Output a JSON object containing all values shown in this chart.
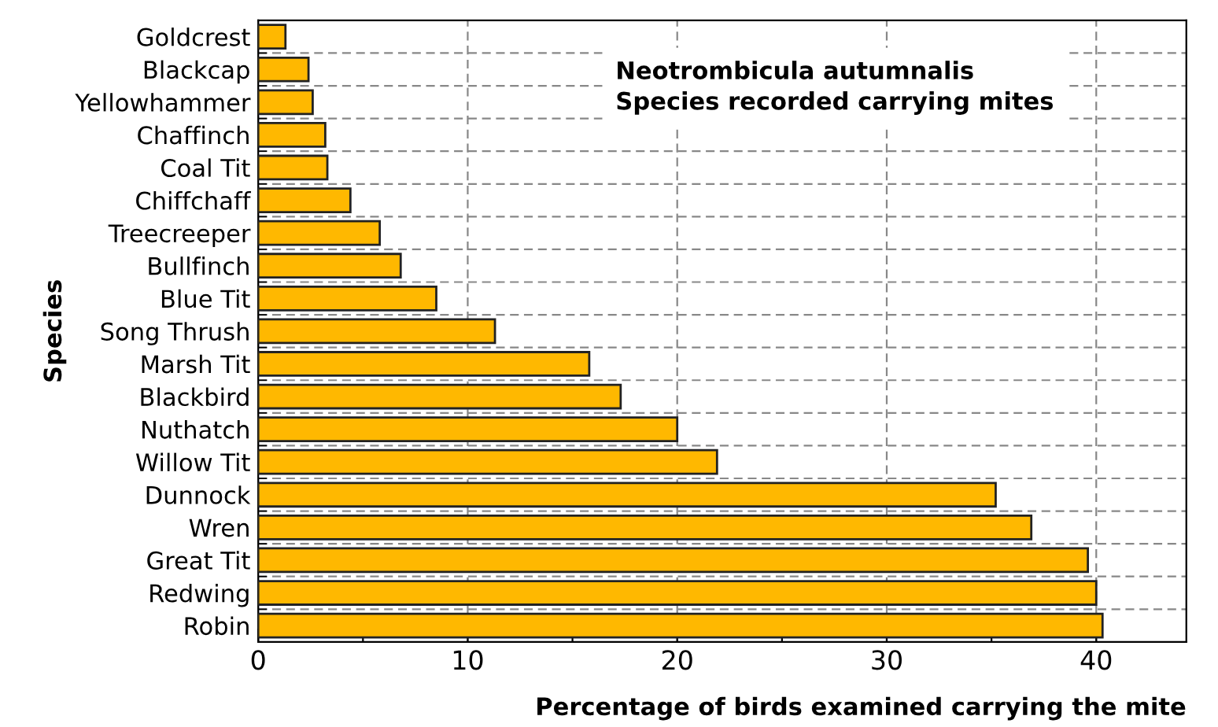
{
  "chart_data": {
    "type": "bar",
    "orientation": "horizontal",
    "title": "Neotrombicula autumnalis",
    "subtitle": "Species recorded carrying mites",
    "xlabel": "Percentage of birds examined carrying the mite",
    "ylabel": "Species",
    "categories": [
      "Goldcrest",
      "Blackcap",
      "Yellowhammer",
      "Chaffinch",
      "Coal Tit",
      "Chiffchaff",
      "Treecreeper",
      "Bullfinch",
      "Blue Tit",
      "Song Thrush",
      "Marsh Tit",
      "Blackbird",
      "Nuthatch",
      "Willow Tit",
      "Dunnock",
      "Wren",
      "Great Tit",
      "Redwing",
      "Robin"
    ],
    "values": [
      1.3,
      2.4,
      2.6,
      3.2,
      3.3,
      4.4,
      5.8,
      6.8,
      8.5,
      11.3,
      15.8,
      17.3,
      20.0,
      21.9,
      35.2,
      36.9,
      39.6,
      40.0,
      40.3
    ],
    "color": "#ffb800",
    "xlim": [
      0,
      44.3
    ],
    "xticks": [
      0,
      {
        "value": 5,
        "label": null
      },
      10,
      {
        "value": 15,
        "label": null
      },
      20,
      {
        "value": 25,
        "label": null
      },
      30,
      {
        "value": 35,
        "label": null
      },
      40
    ],
    "grid": true
  }
}
